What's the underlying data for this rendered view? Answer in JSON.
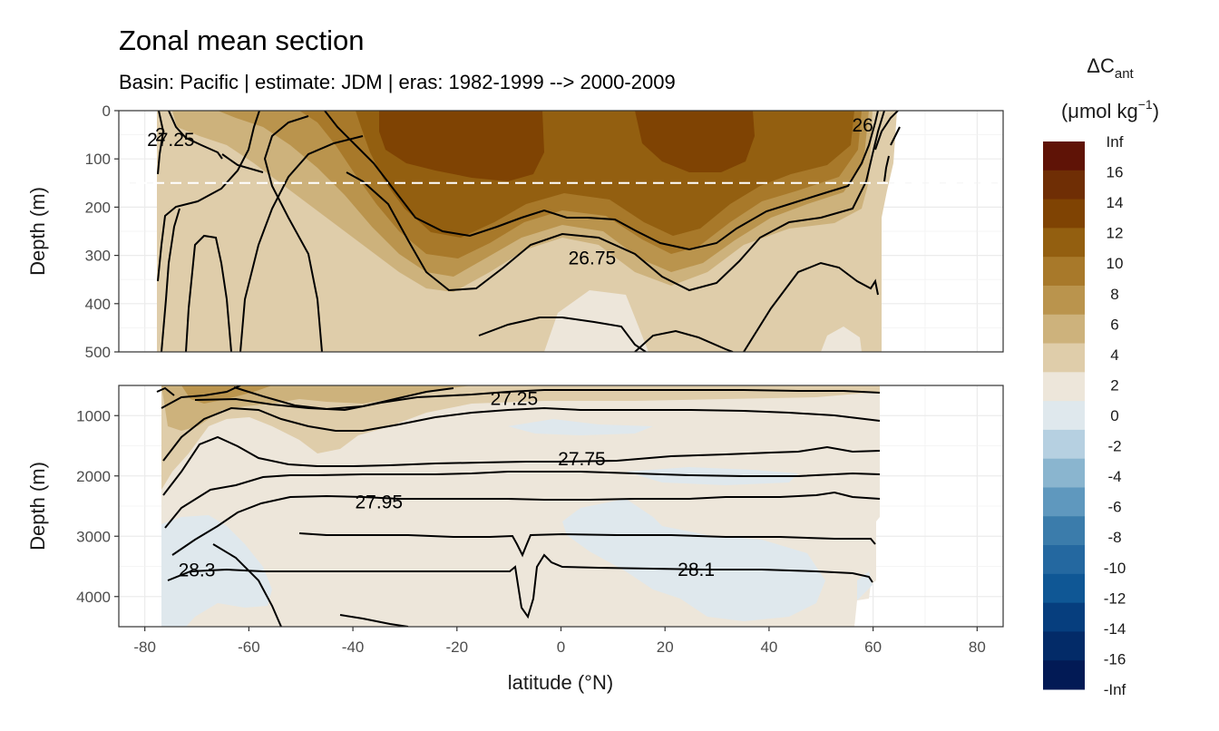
{
  "chart_data": {
    "type": "heatmap",
    "title": "Zonal mean section",
    "subtitle": "Basin: Pacific | estimate: JDM  | eras: 1982-1999 --> 2000-2009",
    "xlabel": "latitude (°N)",
    "ylabel": "Depth (m)",
    "xlim": [
      -85,
      85
    ],
    "x_ticks": [
      "-80",
      "-60",
      "-40",
      "-20",
      "0",
      "20",
      "40",
      "60",
      "80"
    ],
    "grid": true,
    "legend_position": "right",
    "legend": {
      "title_main": "ΔC",
      "title_sub": "ant",
      "unit_pre": "(μmol kg",
      "unit_sup": "−1",
      "unit_post": ")",
      "labels": [
        "Inf",
        "16",
        "14",
        "12",
        "10",
        "8",
        "6",
        "4",
        "2",
        "0",
        "-2",
        "-4",
        "-6",
        "-8",
        "-10",
        "-12",
        "-14",
        "-16",
        "-Inf"
      ],
      "colors": [
        "#5f1306",
        "#6f2e05",
        "#7f4303",
        "#935f10",
        "#a8792a",
        "#ba944d",
        "#cdb27c",
        "#dfcdaa",
        "#ede6da",
        "#dfe8ed",
        "#b6d0e1",
        "#8ab5cf",
        "#5f98be",
        "#3b7cab",
        "#2468a0",
        "#0f5795",
        "#063e7e",
        "#032b68",
        "#021a55"
      ]
    },
    "panels": [
      {
        "name": "upper",
        "ylim": [
          0,
          500
        ],
        "y_ticks": [
          "0",
          "100",
          "200",
          "300",
          "400",
          "500"
        ],
        "y_values": [
          0,
          100,
          200,
          300,
          400,
          500
        ],
        "dashed_reference_depth": 150,
        "contour_labels": [
          {
            "text": "27.25",
            "lat": -75,
            "depth": 60
          },
          {
            "text": "26.75",
            "lat": 6,
            "depth": 305
          },
          {
            "text": "26",
            "lat": 58,
            "depth": 30
          },
          {
            "text": "2",
            "lat": -77,
            "depth": 50
          }
        ]
      },
      {
        "name": "lower",
        "ylim": [
          500,
          4500
        ],
        "y_ticks": [
          "1000",
          "2000",
          "3000",
          "4000"
        ],
        "y_values": [
          1000,
          2000,
          3000,
          4000
        ],
        "contour_labels": [
          {
            "text": "27.25",
            "lat": -9,
            "depth": 720
          },
          {
            "text": "27.75",
            "lat": 4,
            "depth": 1720
          },
          {
            "text": "27.95",
            "lat": -35,
            "depth": 2430
          },
          {
            "text": "28.3",
            "lat": -70,
            "depth": 3560
          },
          {
            "text": "28.1",
            "lat": 26,
            "depth": 3550
          }
        ]
      }
    ]
  }
}
